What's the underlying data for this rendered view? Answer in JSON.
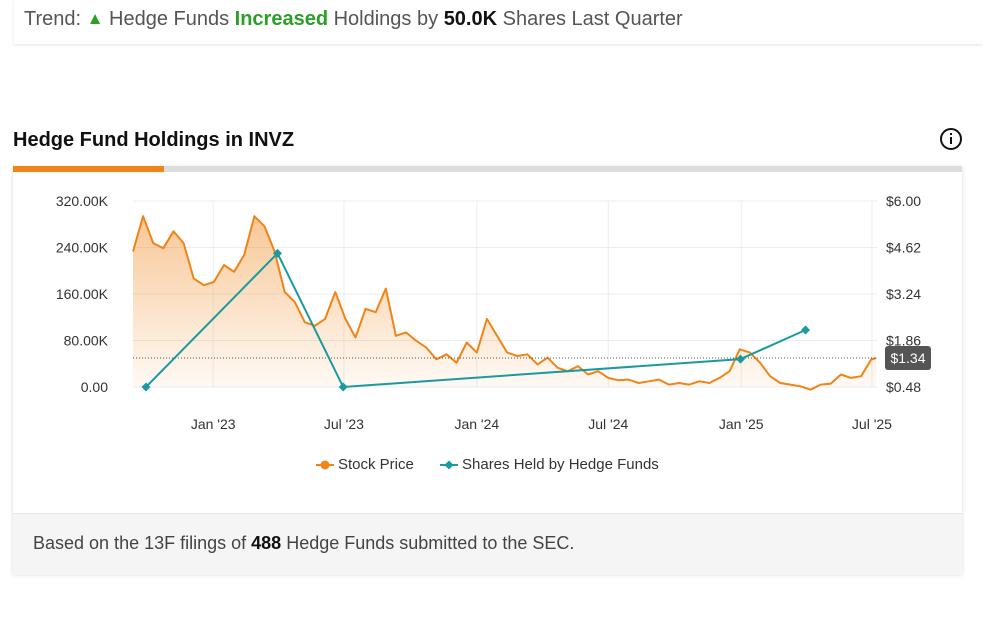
{
  "trend": {
    "prefix": "Trend:",
    "arrow_icon": "up-triangle-icon",
    "part1": "Hedge Funds",
    "direction": "Increased",
    "part2": "Holdings by",
    "amount": "50.0K",
    "part3": "Shares Last Quarter",
    "up_color": "#27a327"
  },
  "section": {
    "title": "Hedge Fund Holdings in INVZ",
    "info_icon": "info-icon"
  },
  "colors": {
    "stock_line": "#f08416",
    "hedge_line": "#1b9aa0",
    "active_tab": "#f08416",
    "price_badge": "#555555"
  },
  "chart_data": {
    "type": "line",
    "x_ticks": [
      "Jan '23",
      "Jul '23",
      "Jan '24",
      "Jul '24",
      "Jan '25",
      "Jul '25"
    ],
    "x_tick_dates": [
      "2023-01-01",
      "2023-07-01",
      "2024-01-01",
      "2024-07-01",
      "2025-01-01",
      "2025-07-01"
    ],
    "xlim": [
      "2022-09-12",
      "2025-07-08"
    ],
    "y_left_ticks": [
      "320.00K",
      "240.00K",
      "160.00K",
      "80.00K",
      "0.00"
    ],
    "y_left_range": [
      0,
      320000
    ],
    "y_right_ticks": [
      "$6.00",
      "$4.62",
      "$3.24",
      "$1.86",
      "$0.48"
    ],
    "y_right_range": [
      0.48,
      6.0
    ],
    "current_price_label": "$1.34",
    "current_price": 1.34,
    "legend": [
      {
        "name": "Stock Price",
        "icon": "orange-dot-icon"
      },
      {
        "name": "Shares Held by Hedge Funds",
        "icon": "teal-diamond-icon"
      }
    ],
    "series": [
      {
        "name": "Shares Held by Hedge Funds",
        "axis": "left",
        "x": [
          "2022-09-30",
          "2023-03-31",
          "2023-06-30",
          "2024-12-31",
          "2025-03-31"
        ],
        "values": [
          0,
          230000,
          0,
          48000,
          98000
        ]
      },
      {
        "name": "Stock Price",
        "axis": "right",
        "x": [
          "2022-09-12",
          "2022-09-26",
          "2022-10-10",
          "2022-10-24",
          "2022-11-07",
          "2022-11-21",
          "2022-12-05",
          "2022-12-19",
          "2023-01-02",
          "2023-01-16",
          "2023-01-30",
          "2023-02-13",
          "2023-02-27",
          "2023-03-13",
          "2023-03-27",
          "2023-04-10",
          "2023-04-24",
          "2023-05-08",
          "2023-05-22",
          "2023-06-05",
          "2023-06-19",
          "2023-07-03",
          "2023-07-17",
          "2023-07-31",
          "2023-08-14",
          "2023-08-28",
          "2023-09-11",
          "2023-09-25",
          "2023-10-09",
          "2023-10-23",
          "2023-11-06",
          "2023-11-20",
          "2023-12-04",
          "2023-12-18",
          "2024-01-01",
          "2024-01-15",
          "2024-01-29",
          "2024-02-12",
          "2024-02-26",
          "2024-03-11",
          "2024-03-25",
          "2024-04-08",
          "2024-04-22",
          "2024-05-06",
          "2024-05-20",
          "2024-06-03",
          "2024-06-17",
          "2024-07-01",
          "2024-07-15",
          "2024-07-29",
          "2024-08-12",
          "2024-08-26",
          "2024-09-09",
          "2024-09-23",
          "2024-10-07",
          "2024-10-21",
          "2024-11-04",
          "2024-11-18",
          "2024-12-02",
          "2024-12-16",
          "2024-12-30",
          "2025-01-13",
          "2025-01-27",
          "2025-02-10",
          "2025-02-24",
          "2025-03-10",
          "2025-03-24",
          "2025-04-07",
          "2025-04-21",
          "2025-05-05",
          "2025-05-19",
          "2025-06-02",
          "2025-06-16",
          "2025-06-30",
          "2025-07-07"
        ],
        "values": [
          4.5,
          5.55,
          4.75,
          4.6,
          5.1,
          4.75,
          3.7,
          3.5,
          3.6,
          4.1,
          3.9,
          4.4,
          5.55,
          5.25,
          4.5,
          3.3,
          3.0,
          2.4,
          2.3,
          2.5,
          3.3,
          2.5,
          1.95,
          2.8,
          2.7,
          3.4,
          2.0,
          2.1,
          1.85,
          1.65,
          1.3,
          1.45,
          1.2,
          1.8,
          1.5,
          2.5,
          2.0,
          1.5,
          1.4,
          1.45,
          1.15,
          1.35,
          1.05,
          0.95,
          1.1,
          0.85,
          0.95,
          0.75,
          0.68,
          0.7,
          0.6,
          0.65,
          0.7,
          0.55,
          0.6,
          0.55,
          0.65,
          0.6,
          0.75,
          0.95,
          1.6,
          1.5,
          1.2,
          0.8,
          0.6,
          0.55,
          0.5,
          0.4,
          0.55,
          0.58,
          0.85,
          0.75,
          0.8,
          1.3,
          1.34
        ]
      }
    ]
  },
  "footer": {
    "text_before": "Based on the 13F filings of",
    "count": "488",
    "text_after": "Hedge Funds submitted to the SEC."
  }
}
